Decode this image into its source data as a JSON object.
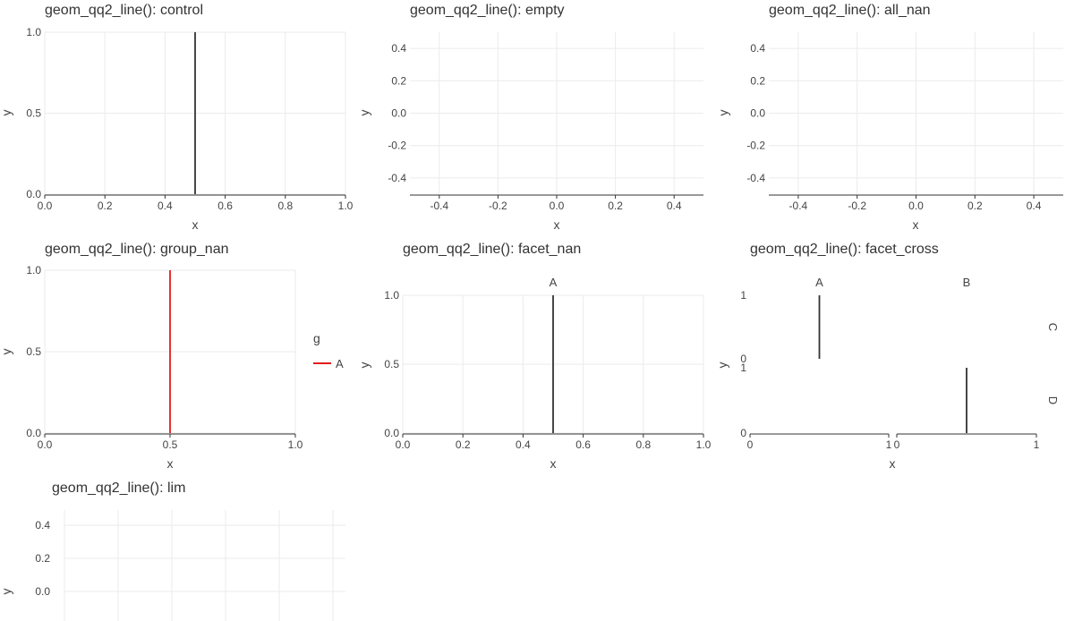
{
  "chart_data": [
    {
      "id": "control",
      "type": "line",
      "title": "geom_qq2_line(): control",
      "xlabel": "x",
      "ylabel": "y",
      "xlim": [
        0,
        1
      ],
      "ylim": [
        0,
        1
      ],
      "x_ticks": [
        "0.0",
        "0.2",
        "0.4",
        "0.6",
        "0.8",
        "1.0"
      ],
      "x_tick_values": [
        0,
        0.2,
        0.4,
        0.6,
        0.8,
        1.0
      ],
      "y_ticks": [
        "0.0",
        "0.5",
        "1.0"
      ],
      "y_tick_values": [
        0,
        0.5,
        1.0
      ],
      "series": [
        {
          "color": "#333333",
          "points": [
            [
              0.5,
              0
            ],
            [
              0.5,
              1
            ]
          ]
        }
      ]
    },
    {
      "id": "empty",
      "type": "line",
      "title": "geom_qq2_line(): empty",
      "xlabel": "x",
      "ylabel": "y",
      "xlim": [
        -0.5,
        0.5
      ],
      "ylim": [
        -0.5,
        0.5
      ],
      "x_ticks": [
        "-0.4",
        "-0.2",
        "0.0",
        "0.2",
        "0.4"
      ],
      "x_tick_values": [
        -0.4,
        -0.2,
        0,
        0.2,
        0.4
      ],
      "y_ticks": [
        "-0.4",
        "-0.2",
        "0.0",
        "0.2",
        "0.4"
      ],
      "y_tick_values": [
        -0.4,
        -0.2,
        0,
        0.2,
        0.4
      ],
      "series": []
    },
    {
      "id": "all_nan",
      "type": "line",
      "title": "geom_qq2_line(): all_nan",
      "xlabel": "x",
      "ylabel": "y",
      "xlim": [
        -0.5,
        0.5
      ],
      "ylim": [
        -0.5,
        0.5
      ],
      "x_ticks": [
        "-0.4",
        "-0.2",
        "0.0",
        "0.2",
        "0.4"
      ],
      "x_tick_values": [
        -0.4,
        -0.2,
        0,
        0.2,
        0.4
      ],
      "y_ticks": [
        "-0.4",
        "-0.2",
        "0.0",
        "0.2",
        "0.4"
      ],
      "y_tick_values": [
        -0.4,
        -0.2,
        0,
        0.2,
        0.4
      ],
      "series": []
    },
    {
      "id": "group_nan",
      "type": "line",
      "title": "geom_qq2_line(): group_nan",
      "xlabel": "x",
      "ylabel": "y",
      "xlim": [
        0,
        1
      ],
      "ylim": [
        0,
        1
      ],
      "x_ticks": [
        "0.0",
        "0.5",
        "1.0"
      ],
      "x_tick_values": [
        0,
        0.5,
        1.0
      ],
      "y_ticks": [
        "0.0",
        "0.5",
        "1.0"
      ],
      "y_tick_values": [
        0,
        0.5,
        1.0
      ],
      "legend": {
        "title": "g",
        "position": "right",
        "items": [
          {
            "name": "A",
            "color": "#e41a1c"
          }
        ]
      },
      "series": [
        {
          "name": "A",
          "color": "#e41a1c",
          "points": [
            [
              0.5,
              0
            ],
            [
              0.5,
              1
            ]
          ]
        }
      ]
    },
    {
      "id": "facet_nan",
      "type": "line",
      "title": "geom_qq2_line(): facet_nan",
      "xlabel": "x",
      "ylabel": "y",
      "xlim": [
        0,
        1
      ],
      "ylim": [
        0,
        1
      ],
      "x_ticks": [
        "0.0",
        "0.2",
        "0.4",
        "0.6",
        "0.8",
        "1.0"
      ],
      "x_tick_values": [
        0,
        0.2,
        0.4,
        0.6,
        0.8,
        1.0
      ],
      "y_ticks": [
        "0.0",
        "0.5",
        "1.0"
      ],
      "y_tick_values": [
        0,
        0.5,
        1.0
      ],
      "facets": [
        "A"
      ],
      "series": [
        {
          "facet": "A",
          "color": "#333333",
          "points": [
            [
              0.5,
              0
            ],
            [
              0.5,
              1
            ]
          ]
        }
      ]
    },
    {
      "id": "facet_cross",
      "type": "line",
      "title": "geom_qq2_line(): facet_cross",
      "xlabel": "x",
      "ylabel": "y",
      "xlim": [
        0,
        1
      ],
      "ylim": [
        0,
        1
      ],
      "x_ticks": [
        "0",
        "1"
      ],
      "x_tick_values": [
        0,
        1
      ],
      "y_ticks": [
        "0",
        "1"
      ],
      "y_tick_values": [
        0,
        1
      ],
      "col_facets": [
        "A",
        "B"
      ],
      "row_facets": [
        "C",
        "D"
      ],
      "series": [
        {
          "col": "A",
          "row": "C",
          "color": "#333333",
          "points": [
            [
              0.5,
              0
            ],
            [
              0.5,
              1
            ]
          ]
        },
        {
          "col": "B",
          "row": "D",
          "color": "#333333",
          "points": [
            [
              0.5,
              0
            ],
            [
              0.5,
              1
            ]
          ]
        }
      ]
    },
    {
      "id": "lim",
      "type": "line",
      "title": "geom_qq2_line(): lim",
      "xlabel": "",
      "ylabel": "y",
      "y_ticks": [
        "0.4",
        "0.2",
        "0.0"
      ],
      "y_tick_values": [
        0.4,
        0.2,
        0
      ],
      "series": []
    }
  ]
}
